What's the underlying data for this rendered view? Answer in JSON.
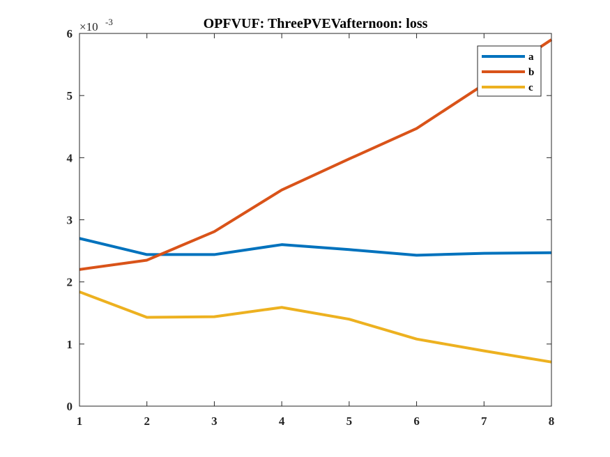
{
  "chart_data": {
    "type": "line",
    "title": "OPFVUF: ThreePVEVafternoon: loss",
    "xlabel": "",
    "ylabel": "",
    "x": [
      1,
      2,
      3,
      4,
      5,
      6,
      7,
      8
    ],
    "xlim": [
      1,
      8
    ],
    "ylim": [
      0,
      0.006
    ],
    "x_ticks": [
      "1",
      "2",
      "3",
      "4",
      "5",
      "6",
      "7",
      "8"
    ],
    "y_ticks": [
      "0",
      "1",
      "2",
      "3",
      "4",
      "5",
      "6"
    ],
    "y_tick_values": [
      0,
      0.001,
      0.002,
      0.003,
      0.004,
      0.005,
      0.006
    ],
    "y_exponent": {
      "base": "×10",
      "power": "-3"
    },
    "grid": false,
    "legend_position": "top-right",
    "series": [
      {
        "name": "a",
        "color": "#0072BD",
        "values": [
          0.0027,
          0.00244,
          0.00244,
          0.0026,
          0.00252,
          0.00243,
          0.00246,
          0.00247
        ]
      },
      {
        "name": "b",
        "color": "#D95319",
        "values": [
          0.0022,
          0.00235,
          0.00281,
          0.00348,
          0.00398,
          0.00447,
          0.00518,
          0.0059
        ]
      },
      {
        "name": "c",
        "color": "#EDB120",
        "values": [
          0.00184,
          0.00143,
          0.00144,
          0.00159,
          0.0014,
          0.00108,
          0.00089,
          0.00071
        ]
      }
    ]
  }
}
